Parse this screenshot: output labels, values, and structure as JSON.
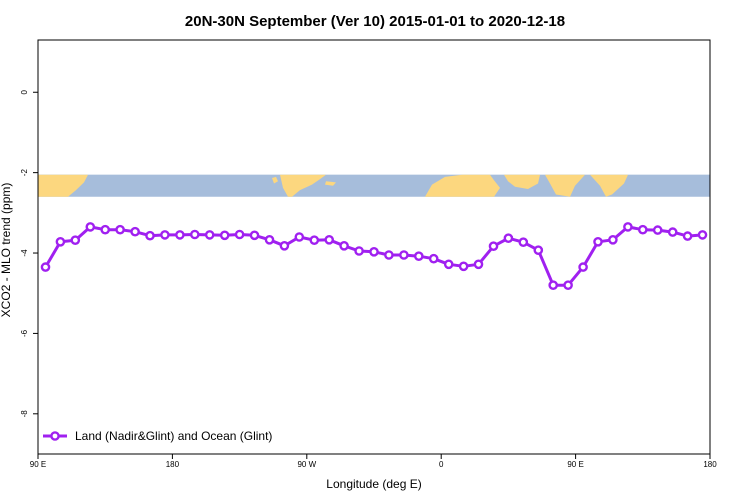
{
  "chart_data": {
    "type": "line",
    "title": "20N-30N September (Ver 10)   2015-01-01 to 2020-12-18",
    "xlabel": "Longitude (deg E)",
    "ylabel": "XCO2 - MLO trend (ppm)",
    "x_axis": {
      "range": [
        90,
        540
      ],
      "tick_values": [
        90,
        180,
        270,
        360,
        450,
        540
      ],
      "tick_labels": [
        "90 E",
        "180",
        "90 W",
        "0",
        "90 E",
        "180"
      ]
    },
    "y_axis": {
      "range": [
        -9.0,
        1.3
      ],
      "tick_values": [
        0,
        -2,
        -4,
        -6,
        -8
      ],
      "tick_labels": [
        "0",
        "-2",
        "-4",
        "-6",
        "-8"
      ]
    },
    "map_band": {
      "y_top": -2.05,
      "y_bottom": -2.6,
      "ocean_color": "#a6bddb",
      "land_color": "#fcd77f"
    },
    "series": [
      {
        "name": "Land (Nadir&Glint) and Ocean (Glint)",
        "color": "#a020f0",
        "x": [
          95,
          105,
          115,
          125,
          135,
          145,
          155,
          165,
          175,
          185,
          195,
          205,
          215,
          225,
          235,
          245,
          255,
          265,
          275,
          285,
          295,
          305,
          315,
          325,
          335,
          345,
          355,
          365,
          375,
          385,
          395,
          405,
          415,
          425,
          435,
          445,
          455,
          465,
          475,
          485,
          495,
          505,
          515,
          525,
          535
        ],
        "values": [
          -4.35,
          -3.72,
          -3.68,
          -3.35,
          -3.42,
          -3.42,
          -3.47,
          -3.57,
          -3.55,
          -3.55,
          -3.54,
          -3.55,
          -3.56,
          -3.54,
          -3.56,
          -3.67,
          -3.82,
          -3.6,
          -3.68,
          -3.67,
          -3.82,
          -3.95,
          -3.97,
          -4.05,
          -4.05,
          -4.08,
          -4.14,
          -4.28,
          -4.33,
          -4.28,
          -3.83,
          -3.63,
          -3.73,
          -3.93,
          -4.8,
          -4.8,
          -4.35,
          -3.72,
          -3.67,
          -3.35,
          -3.42,
          -3.43,
          -3.48,
          -3.58,
          -3.55
        ]
      }
    ],
    "legend": {
      "position": "bottom-left"
    }
  }
}
